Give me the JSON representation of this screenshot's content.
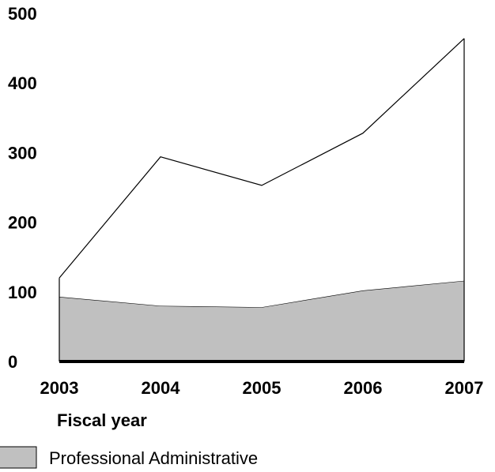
{
  "chart_data": {
    "type": "area",
    "title": "",
    "xlabel": "Fiscal year",
    "ylabel": "",
    "categories": [
      "2003",
      "2004",
      "2005",
      "2006",
      "2007"
    ],
    "ylim": [
      0,
      500
    ],
    "yticks": [
      0,
      100,
      200,
      300,
      400,
      500
    ],
    "grid": false,
    "stacked": true,
    "series": [
      {
        "name": "Professional Administrative",
        "values": [
          93,
          80,
          78,
          102,
          116
        ],
        "color": "#c0c0c0"
      },
      {
        "name": "",
        "values": [
          27,
          214,
          175,
          226,
          348
        ],
        "color": "#ffffff"
      }
    ],
    "legend": {
      "position": "bottom-left",
      "entries": [
        "Professional Administrative"
      ]
    }
  }
}
